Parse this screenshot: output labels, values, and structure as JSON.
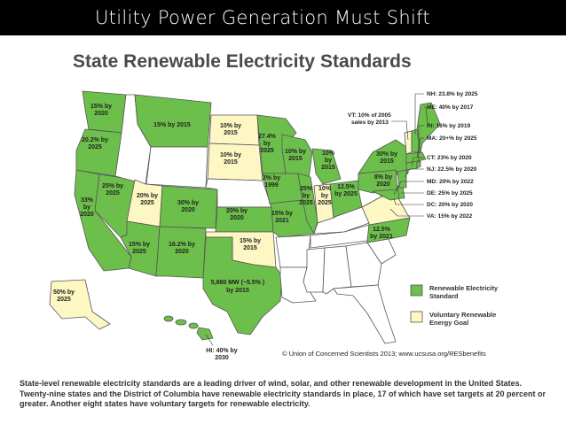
{
  "slide": {
    "title": "Utility Power Generation Must Shift"
  },
  "map": {
    "heading": "State Renewable Electricity Standards",
    "colors": {
      "standard": "#6dbf4b",
      "goal": "#fdf7c3",
      "none": "#ffffff",
      "border": "#555555"
    },
    "labels": {
      "wa": [
        "15% by",
        "2020"
      ],
      "or": [
        "20.2% by",
        "2025"
      ],
      "ca": [
        "33%",
        "by",
        "2020"
      ],
      "nv": [
        "25% by",
        "2025"
      ],
      "ut": [
        "20% by",
        "2025"
      ],
      "co": [
        "30% by",
        "2020"
      ],
      "az": [
        "15% by",
        "2025"
      ],
      "nm": [
        "16.2% by",
        "2020"
      ],
      "mt": [
        "15% by 2015"
      ],
      "nd": [
        "10% by",
        "2015"
      ],
      "sd": [
        "10% by",
        "2015"
      ],
      "mn": [
        "27.4%",
        "by",
        "2025"
      ],
      "wi": [
        "10% by",
        "2015"
      ],
      "ia": [
        "2% by",
        "1999"
      ],
      "ks": [
        "20% by",
        "2020"
      ],
      "ok": [
        "15% by",
        "2015"
      ],
      "tx": [
        "5,880 MW (~5.5% )",
        "by 2015"
      ],
      "mo": [
        "15% by",
        "2021"
      ],
      "il": [
        "25%",
        "by",
        "2025"
      ],
      "in": [
        "10%",
        "by",
        "2025"
      ],
      "mi": [
        "10%",
        "by",
        "2015"
      ],
      "oh": [
        "12.5%",
        "by 2025"
      ],
      "pa": [
        "8% by",
        "2020"
      ],
      "ny": [
        "30% by",
        "2015"
      ],
      "nc": [
        "12.5%",
        "by 2021"
      ],
      "ak": [
        "50% by",
        "2025"
      ],
      "hi": [
        "HI: 40% by",
        "2030"
      ]
    },
    "callouts": {
      "vt": [
        "VT: 10% of  2005",
        "sales by 2013"
      ],
      "nh": "NH: 23.8% by 2025",
      "me": "ME: 40% by 2017",
      "ri": "RI: 16% by 2019",
      "ma": "MA: 20+% by 2025",
      "ct": "CT: 23% by 2020",
      "nj": "NJ: 22.5% by 2020",
      "md": "MD: 20% by 2022",
      "de": "DE: 25% by 2025",
      "dc": "DC: 20% by 2020",
      "va": "VA: 15% by 2022"
    },
    "legend": {
      "standard": [
        "Renewable Electricity",
        "Standard"
      ],
      "goal": [
        "Voluntary Renewable",
        "Energy Goal"
      ]
    },
    "credit": "© Union of Concerned Scientists 2013; www.ucsusa.org/RESbenefits"
  },
  "caption": "State-level renewable electricity standards are a leading driver of wind, solar, and other renewable development in the United States. Twenty-nine states and the District of Columbia have renewable electricity standards in place, 17 of which have set targets at 20 percent or greater. Another eight states have voluntary targets for renewable electricity."
}
